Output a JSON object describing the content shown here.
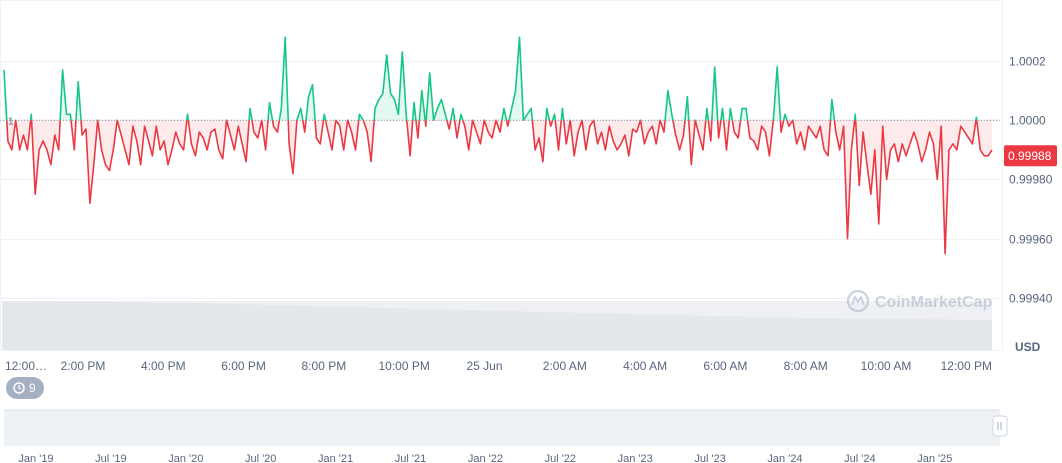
{
  "chart_data": {
    "type": "line",
    "title": "",
    "xlabel": "",
    "ylabel": "",
    "currency_label": "USD",
    "watermark": "CoinMarketCap",
    "baseline_label": "1",
    "baseline_value": 1.0,
    "current_price_label": "0.99988",
    "current_price": 0.99988,
    "ylim": [
      0.9993,
      1.0003
    ],
    "y_ticks": [
      {
        "value": 1.0002,
        "label": "1.0002"
      },
      {
        "value": 1.0,
        "label": "1.0000"
      },
      {
        "value": 0.9998,
        "label": "0.99980"
      },
      {
        "value": 0.9996,
        "label": "0.99960"
      },
      {
        "value": 0.9994,
        "label": "0.99940"
      }
    ],
    "x_ticks": [
      "12:00…",
      "2:00 PM",
      "4:00 PM",
      "6:00 PM",
      "8:00 PM",
      "10:00 PM",
      "25 Jun",
      "2:00 AM",
      "4:00 AM",
      "6:00 AM",
      "8:00 AM",
      "10:00 AM",
      "12:00 PM"
    ],
    "range_count": "9",
    "navigator_ticks": [
      "Jan '19",
      "Jul '19",
      "Jan '20",
      "Jul '20",
      "Jan '21",
      "Jul '21",
      "Jan '22",
      "Jul '22",
      "Jan '23",
      "Jul '23",
      "Jan '24",
      "Jul '24",
      "Jan '25"
    ],
    "colors": {
      "above": "#16c784",
      "below": "#ea3943",
      "grid": "#eff2f5",
      "baseline": "#8a94a6"
    },
    "values": [
      1.00017,
      0.99993,
      0.9999,
      1.0,
      0.9999,
      0.99995,
      0.9999,
      1.00002,
      0.99975,
      0.9999,
      0.99993,
      0.9999,
      0.99985,
      0.99995,
      0.9999,
      1.00017,
      1.00002,
      1.00002,
      0.9999,
      1.00013,
      0.99995,
      0.99997,
      0.99972,
      0.99985,
      1.0,
      0.9999,
      0.99985,
      0.99983,
      0.9999,
      1.0,
      0.99995,
      0.9999,
      0.99985,
      0.99998,
      0.99993,
      0.99985,
      0.99998,
      0.99993,
      0.99988,
      0.99998,
      0.9999,
      0.99993,
      0.99985,
      0.9999,
      0.99996,
      0.99992,
      0.9999,
      1.00002,
      0.99992,
      0.99988,
      0.99996,
      0.99994,
      0.9999,
      0.99996,
      0.99997,
      0.9999,
      0.99987,
      1.0,
      0.99995,
      0.9999,
      0.99998,
      0.99992,
      0.99986,
      1.00004,
      0.99996,
      0.99994,
      1.0,
      0.9999,
      1.00006,
      0.99998,
      0.99996,
      1.00004,
      1.00028,
      0.99992,
      0.99982,
      1.0,
      1.00004,
      0.99996,
      1.00008,
      1.00012,
      0.99994,
      0.99992,
      1.00002,
      0.99996,
      0.9999,
      1.0,
      0.99998,
      0.9999,
      1.0,
      0.99996,
      0.9999,
      1.00002,
      1.0,
      0.99996,
      0.99986,
      1.00004,
      1.00007,
      1.00009,
      1.00022,
      1.00009,
      1.00007,
      1.00002,
      1.00023,
      1.00002,
      0.99988,
      1.00006,
      0.99994,
      1.0001,
      0.99998,
      1.00016,
      1.0,
      1.00004,
      1.00007,
      1.00002,
      0.99997,
      1.00004,
      0.99994,
      1.00002,
      0.99998,
      0.9999,
      1.0,
      0.99996,
      0.99992,
      1.0,
      0.99996,
      0.99994,
      1.0,
      0.99996,
      1.00004,
      0.99998,
      1.00004,
      1.0001,
      1.00028,
      1.0,
      1.00002,
      1.00004,
      0.9999,
      0.99994,
      0.99986,
      1.00004,
      0.99998,
      1.00002,
      0.9999,
      1.00004,
      0.99992,
      1.0,
      0.99988,
      0.99996,
      1.0,
      0.9999,
      0.99998,
      1.0,
      0.99992,
      0.99996,
      0.9999,
      0.99998,
      0.99993,
      0.9999,
      0.99992,
      0.99995,
      0.99988,
      0.99997,
      0.99996,
      1.0,
      0.99992,
      0.99996,
      0.99998,
      0.99992,
      1.0,
      0.99996,
      1.0001,
      1.00002,
      0.99995,
      0.9999,
      0.99995,
      1.00008,
      0.99985,
      1.0,
      0.99995,
      0.9999,
      1.00004,
      0.99993,
      1.00018,
      0.99994,
      1.00004,
      0.9999,
      1.00004,
      0.99996,
      0.99994,
      1.00004,
      1.00004,
      0.99994,
      0.99993,
      0.9999,
      0.99998,
      0.99996,
      0.99988,
      1.0,
      1.00018,
      0.99996,
      1.00002,
      0.99998,
      1.0,
      0.99992,
      0.99996,
      0.9999,
      0.99998,
      0.99996,
      0.99994,
      0.99998,
      0.9999,
      0.99988,
      1.00007,
      0.99996,
      0.9999,
      0.99998,
      0.9996,
      0.9999,
      1.00002,
      0.99978,
      0.99996,
      0.99985,
      0.99975,
      0.9999,
      0.99965,
      0.99998,
      0.9998,
      0.9999,
      0.99992,
      0.99986,
      0.99992,
      0.99988,
      0.99992,
      0.99996,
      0.99992,
      0.99986,
      0.9999,
      0.99996,
      0.99992,
      0.9998,
      0.99998,
      0.99955,
      0.9999,
      0.99992,
      0.9999,
      0.99998,
      0.99996,
      0.99994,
      0.99992,
      1.00001,
      0.9999,
      0.99988,
      0.99988,
      0.9999
    ]
  }
}
